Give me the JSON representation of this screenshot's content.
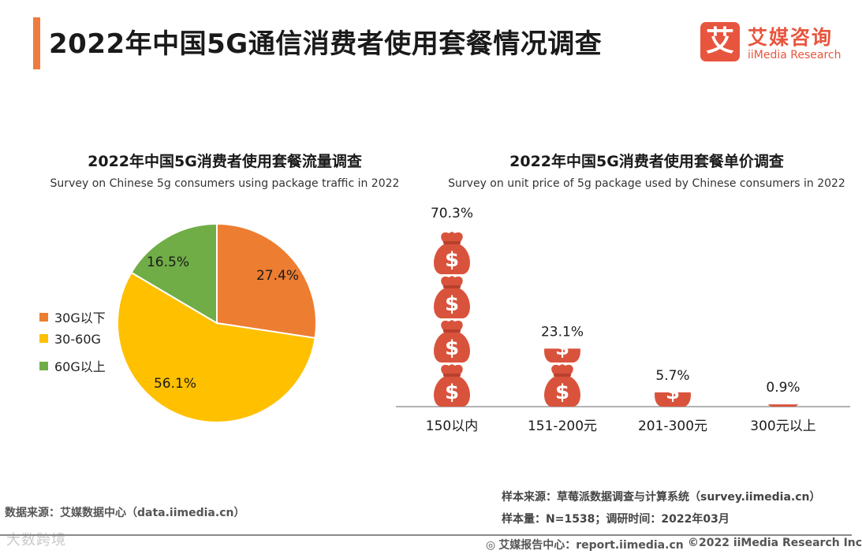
{
  "header": {
    "title": "2022年中国5G通信消费者使用套餐情况调查",
    "brand_cn": "艾媒咨询",
    "brand_en": "iiMedia Research",
    "brand_logo_char": "艾"
  },
  "chart_data": [
    {
      "type": "pie",
      "title": "2022年中国5G消费者使用套餐流量调查",
      "subtitle": "Survey on Chinese 5g consumers using package traffic in 2022",
      "categories": [
        "30G以下",
        "30-60G",
        "60G以上"
      ],
      "values": [
        27.4,
        56.1,
        16.5
      ],
      "value_labels": [
        "27.4%",
        "56.1%",
        "16.5%"
      ],
      "colors": [
        "#ed7d31",
        "#ffc000",
        "#70ad47"
      ],
      "legend_position": "left"
    },
    {
      "type": "bar",
      "title": "2022年中国5G消费者使用套餐单价调查",
      "subtitle": "Survey on unit price of 5g package used by Chinese consumers in 2022",
      "categories": [
        "150以内",
        "151-200元",
        "201-300元",
        "300元以上"
      ],
      "values": [
        70.3,
        23.1,
        5.7,
        0.9
      ],
      "value_labels": [
        "70.3%",
        "23.1%",
        "5.7%",
        "0.9%"
      ],
      "unit": "%",
      "ylim": [
        0,
        70.3
      ],
      "marker": "money-bag",
      "color": "#d9533c"
    }
  ],
  "sources": {
    "left": "数据来源：艾媒数据中心（data.iimedia.cn）",
    "sample_source": "样本来源：草莓派数据调查与计算系统（survey.iimedia.cn）",
    "sample_size": "样本量：N=1538；调研时间：2022年03月",
    "report_center": "艾媒报告中心：report.iimedia.cn",
    "copyright": "©2022  iiMedia Research  Inc"
  },
  "watermark": "大数跨境"
}
